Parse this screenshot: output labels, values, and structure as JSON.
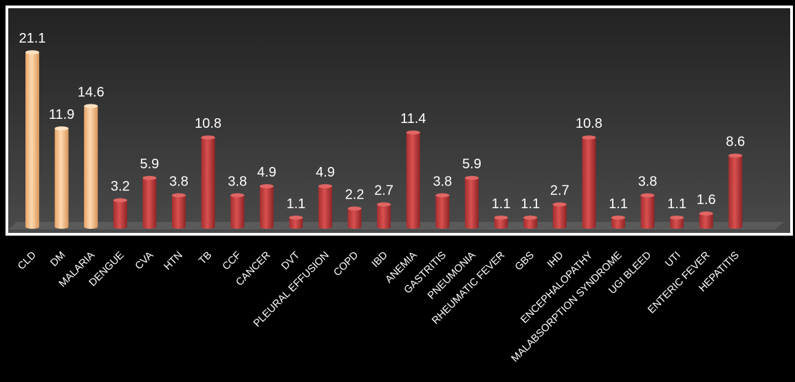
{
  "chart_data": {
    "type": "bar",
    "title": "",
    "xlabel": "",
    "ylabel": "",
    "categories": [
      "CLD",
      "DM",
      "MALARIA",
      "DENGUE",
      "CVA",
      "HTN",
      "TB",
      "CCF",
      "CANCER",
      "DVT",
      "PLEURAL EFFUSION",
      "COPD",
      "IBD",
      "ANEMIA",
      "GASTRITIS",
      "PNEUMONIA",
      "RHEUMATIC FEVER",
      "GBS",
      "IHD",
      "ENCEPHALOPATHY",
      "MALABSORPTION SYNDROME",
      "UGI BLEED",
      "UTI",
      "ENTERIC FEVER",
      "HEPATITIS"
    ],
    "values": [
      21.1,
      11.9,
      14.6,
      3.2,
      5.9,
      3.8,
      10.8,
      3.8,
      4.9,
      1.1,
      4.9,
      2.2,
      2.7,
      11.4,
      3.8,
      5.9,
      1.1,
      1.1,
      2.7,
      10.8,
      1.1,
      3.8,
      1.1,
      1.6,
      8.6
    ],
    "value_labels": [
      "21.1",
      "11.9",
      "14.6",
      "3.2",
      "5.9",
      "3.8",
      "10.8",
      "3.8",
      "4.9",
      "1.1",
      "4.9",
      "2.2",
      "2.7",
      "11.4",
      "3.8",
      "5.9",
      "1.1",
      "1.1",
      "2.7",
      "10.8",
      "1.1",
      "3.8",
      "1.1",
      "1.6",
      "8.6"
    ],
    "highlight_count": 3,
    "colors": {
      "highlight": "#FBC48E",
      "highlight_dark": "#D8955A",
      "default": "#C0393B",
      "default_dark": "#8E2426",
      "plot_background": "#3A3A3A",
      "frame": "#FFFFFF"
    },
    "grid": false,
    "legend": "none"
  }
}
